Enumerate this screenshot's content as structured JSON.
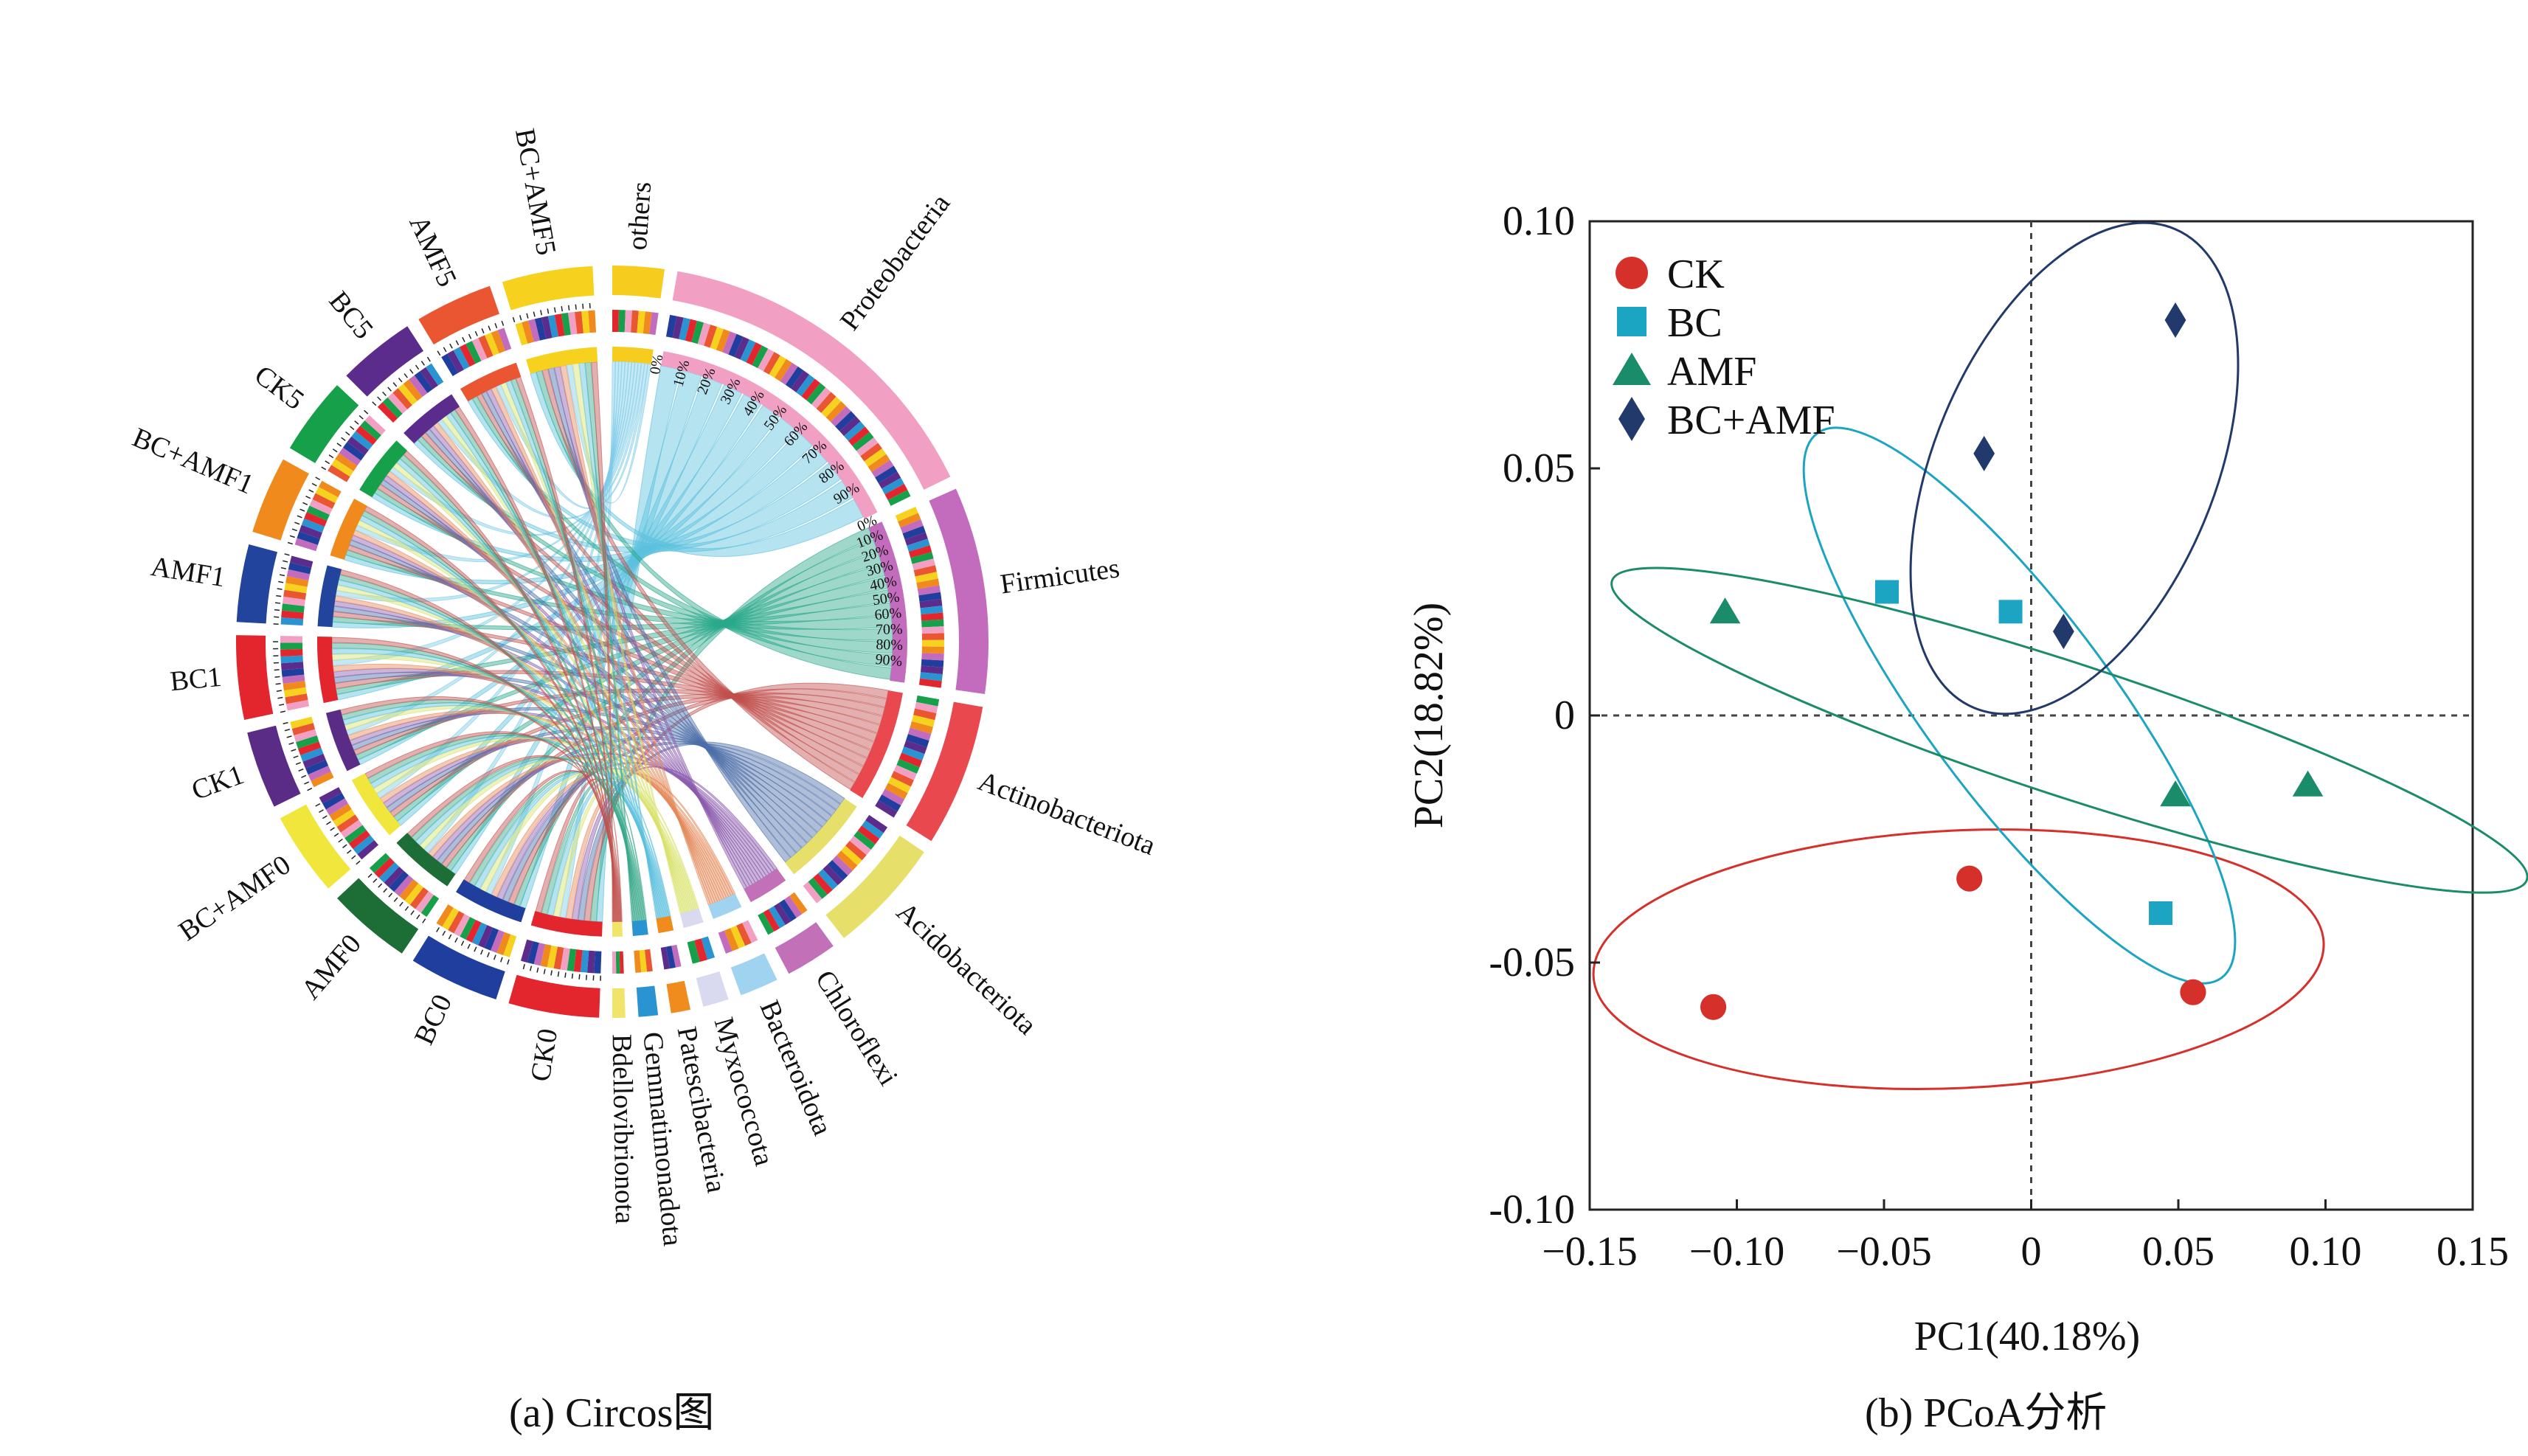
{
  "captions": {
    "a": "(a) Circos图",
    "b": "(b) PCoA分析"
  },
  "chart_data": [
    {
      "type": "chord",
      "sample_segments": [
        "CK0",
        "BC0",
        "AMF0",
        "BC+AMF0",
        "CK1",
        "BC1",
        "AMF1",
        "BC+AMF1",
        "CK5",
        "BC5",
        "AMF5",
        "BC+AMF5"
      ],
      "taxa_segments": [
        "others",
        "Proteobacteria",
        "Firmicutes",
        "Actinobacteriota",
        "Acidobacteriota",
        "Chloroflexi",
        "Bacteroidota",
        "Myxococcota",
        "Patescibacteria",
        "Gemmatimonadota",
        "Bdellovibrionota"
      ],
      "percent_ticks": [
        "0%",
        "10%",
        "20%",
        "30%",
        "40%",
        "50%",
        "60%",
        "70%",
        "80%",
        "90%"
      ],
      "segment_colors": {
        "CK0": "#e3262d",
        "BC0": "#1f3e9e",
        "AMF0": "#1d6e36",
        "BC+AMF0": "#f1e63c",
        "CK1": "#5b2c86",
        "BC1": "#e3262d",
        "AMF1": "#22449c",
        "BC+AMF1": "#f08a1c",
        "CK5": "#17a04a",
        "BC5": "#5c2c8d",
        "AMF5": "#ea5632",
        "BC+AMF5": "#f6d21e",
        "others": "#f6cc1e",
        "Proteobacteria": "#f29fc4",
        "Firmicutes": "#c36cbd",
        "Actinobacteriota": "#e8484e",
        "Acidobacteriota": "#e6e06a",
        "Chloroflexi": "#c271b8",
        "Bacteroidota": "#9fd3ef",
        "Myxococcota": "#d9daf0",
        "Patescibacteria": "#f08c1e",
        "Gemmatimonadota": "#2a93d1",
        "Bdellovibrionota": "#f1e46a"
      }
    },
    {
      "type": "scatter",
      "xlabel": "PC1(40.18%)",
      "ylabel": "PC2(18.82%)",
      "xlim": [
        -0.15,
        0.15
      ],
      "ylim": [
        -0.1,
        0.1
      ],
      "x_ticks": [
        "−0.15",
        "−0.10",
        "−0.05",
        "0",
        "0.05",
        "0.10",
        "0.15"
      ],
      "x_tick_values": [
        -0.15,
        -0.1,
        -0.05,
        0,
        0.05,
        0.1,
        0.15
      ],
      "y_ticks": [
        "0.10",
        "0.05",
        "0",
        "-0.05",
        "-0.10"
      ],
      "y_tick_values": [
        0.1,
        0.05,
        0,
        -0.05,
        -0.1
      ],
      "legend_position": "top-left",
      "reference_lines": "dashed at x=0 and y=0",
      "series": [
        {
          "name": "CK",
          "color": "#d6302a",
          "marker": "circle",
          "points": [
            [
              -0.108,
              -0.059
            ],
            [
              -0.021,
              -0.033
            ],
            [
              0.055,
              -0.056
            ]
          ]
        },
        {
          "name": "BC",
          "color": "#1ba5c3",
          "marker": "square",
          "points": [
            [
              -0.049,
              0.025
            ],
            [
              -0.007,
              0.021
            ],
            [
              0.044,
              -0.04
            ]
          ]
        },
        {
          "name": "AMF",
          "color": "#1b8c6a",
          "marker": "triangle",
          "points": [
            [
              -0.104,
              0.021
            ],
            [
              0.049,
              -0.016
            ],
            [
              0.094,
              -0.014
            ]
          ]
        },
        {
          "name": "BC+AMF",
          "color": "#223a6b",
          "marker": "diamond",
          "points": [
            [
              -0.016,
              0.053
            ],
            [
              0.011,
              0.017
            ],
            [
              0.049,
              0.08
            ]
          ]
        }
      ]
    }
  ]
}
